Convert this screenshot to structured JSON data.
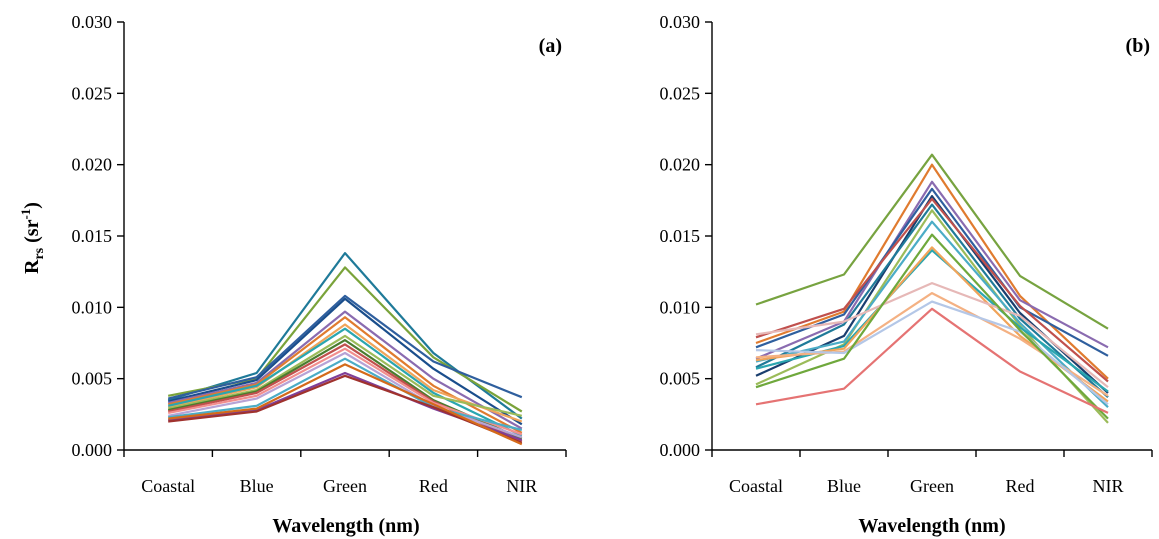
{
  "chart_data": [
    {
      "type": "line",
      "panel_label": "(a)",
      "xlabel": "Wavelength (nm)",
      "ylabel": "R",
      "ylabel_sub": "rs",
      "ylabel_unit_open": " (sr",
      "ylabel_unit_sup": "-1",
      "ylabel_unit_close": ")",
      "categories": [
        "Coastal",
        "Blue",
        "Green",
        "Red",
        "NIR"
      ],
      "ylim": [
        0,
        0.03
      ],
      "yticks": [
        "0.000",
        "0.005",
        "0.010",
        "0.015",
        "0.020",
        "0.025",
        "0.030"
      ],
      "grid": false,
      "series": [
        {
          "color": "#1f7a99",
          "values": [
            0.0035,
            0.0054,
            0.0138,
            0.0068,
            0.0022
          ]
        },
        {
          "color": "#7aa33a",
          "values": [
            0.0038,
            0.005,
            0.0128,
            0.0065,
            0.0027
          ]
        },
        {
          "color": "#2f5f9e",
          "values": [
            0.0036,
            0.0051,
            0.0108,
            0.0062,
            0.0037
          ]
        },
        {
          "color": "#1a4e8c",
          "values": [
            0.0034,
            0.0049,
            0.0106,
            0.0057,
            0.0018
          ]
        },
        {
          "color": "#8a6bb0",
          "values": [
            0.0033,
            0.0047,
            0.0097,
            0.005,
            0.0015
          ]
        },
        {
          "color": "#e07b2f",
          "values": [
            0.0032,
            0.0046,
            0.0093,
            0.0045,
            0.0012
          ]
        },
        {
          "color": "#f0a45a",
          "values": [
            0.003,
            0.0044,
            0.0088,
            0.0042,
            0.002
          ]
        },
        {
          "color": "#2aa6b0",
          "values": [
            0.0031,
            0.0045,
            0.0085,
            0.004,
            0.001
          ]
        },
        {
          "color": "#9bbb59",
          "values": [
            0.0029,
            0.0042,
            0.008,
            0.0038,
            0.0024
          ]
        },
        {
          "color": "#4a7c2f",
          "values": [
            0.0028,
            0.0041,
            0.0077,
            0.0035,
            0.0008
          ]
        },
        {
          "color": "#c0504d",
          "values": [
            0.0027,
            0.004,
            0.0074,
            0.0034,
            0.0006
          ]
        },
        {
          "color": "#f28e8e",
          "values": [
            0.0026,
            0.0038,
            0.0071,
            0.0033,
            0.0011
          ]
        },
        {
          "color": "#b7a3d6",
          "values": [
            0.0024,
            0.0036,
            0.0068,
            0.0031,
            0.0009
          ]
        },
        {
          "color": "#4bacc6",
          "values": [
            0.0023,
            0.0031,
            0.0064,
            0.003,
            0.0014
          ]
        },
        {
          "color": "#7f3f98",
          "values": [
            0.0021,
            0.0028,
            0.0054,
            0.0029,
            0.0007
          ]
        },
        {
          "color": "#a0322e",
          "values": [
            0.002,
            0.0027,
            0.0052,
            0.003,
            0.0005
          ]
        },
        {
          "color": "#d46a1a",
          "values": [
            0.0022,
            0.0029,
            0.006,
            0.0032,
            0.0004
          ]
        }
      ]
    },
    {
      "type": "line",
      "panel_label": "(b)",
      "xlabel": "Wavelength (nm)",
      "categories": [
        "Coastal",
        "Blue",
        "Green",
        "Red",
        "NIR"
      ],
      "ylim": [
        0,
        0.03
      ],
      "yticks": [
        "0.000",
        "0.005",
        "0.010",
        "0.015",
        "0.020",
        "0.025",
        "0.030"
      ],
      "grid": false,
      "series": [
        {
          "color": "#77a340",
          "values": [
            0.0102,
            0.0123,
            0.0207,
            0.0122,
            0.0085
          ]
        },
        {
          "color": "#e07b2f",
          "values": [
            0.0075,
            0.0097,
            0.02,
            0.0108,
            0.005
          ]
        },
        {
          "color": "#8a6bb0",
          "values": [
            0.0064,
            0.009,
            0.0188,
            0.0105,
            0.0072
          ]
        },
        {
          "color": "#2f5f9e",
          "values": [
            0.0072,
            0.0095,
            0.0183,
            0.01,
            0.0066
          ]
        },
        {
          "color": "#1a3e6e",
          "values": [
            0.0052,
            0.008,
            0.0178,
            0.0096,
            0.004
          ]
        },
        {
          "color": "#c0504d",
          "values": [
            0.0079,
            0.0099,
            0.0176,
            0.0101,
            0.0048
          ]
        },
        {
          "color": "#1f7a99",
          "values": [
            0.0058,
            0.0088,
            0.0172,
            0.0092,
            0.0037
          ]
        },
        {
          "color": "#9bbb59",
          "values": [
            0.0046,
            0.0074,
            0.0168,
            0.0087,
            0.0019
          ]
        },
        {
          "color": "#4bacc6",
          "values": [
            0.0062,
            0.0076,
            0.016,
            0.0089,
            0.003
          ]
        },
        {
          "color": "#2aa6b0",
          "values": [
            0.0057,
            0.0073,
            0.014,
            0.0086,
            0.0041
          ]
        },
        {
          "color": "#f0a45a",
          "values": [
            0.0063,
            0.0071,
            0.0142,
            0.008,
            0.0034
          ]
        },
        {
          "color": "#f4b183",
          "values": [
            0.0065,
            0.0069,
            0.011,
            0.0078,
            0.0038
          ]
        },
        {
          "color": "#e6b8b7",
          "values": [
            0.0081,
            0.009,
            0.0117,
            0.0094,
            0.0044
          ]
        },
        {
          "color": "#b4c7e7",
          "values": [
            0.007,
            0.0068,
            0.0104,
            0.0083,
            0.0032
          ]
        },
        {
          "color": "#6fa83c",
          "values": [
            0.0044,
            0.0064,
            0.0151,
            0.0084,
            0.0022
          ]
        },
        {
          "color": "#e57373",
          "values": [
            0.0032,
            0.0043,
            0.0099,
            0.0055,
            0.0026
          ]
        }
      ]
    }
  ]
}
